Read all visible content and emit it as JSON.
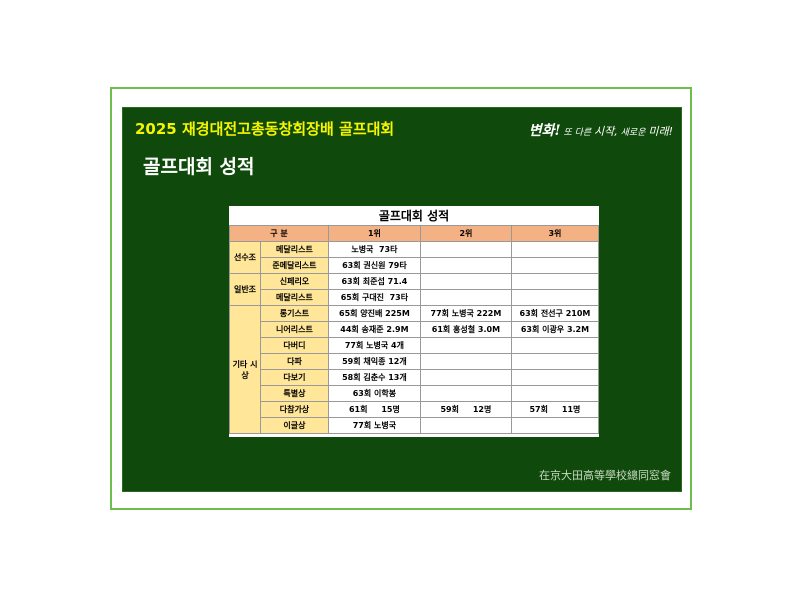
{
  "header": {
    "title": "2025 재경대전고총동창회장배 골프대회",
    "subtitle": "골프대회 성적",
    "logo": "변화! 또 다른 시작, 새로운 미래!",
    "footer": "在京大田高等學校總同窓會"
  },
  "table": {
    "title": "골프대회 성적",
    "columns": [
      "구  분",
      "1위",
      "2위",
      "3위"
    ],
    "groups": [
      {
        "name": "선수조",
        "rows": [
          {
            "label": "메달리스트",
            "cells": [
              "노병국  73타",
              "",
              ""
            ]
          },
          {
            "label": "준메달리스트",
            "cells": [
              "63회 권신원 79타",
              "",
              ""
            ]
          }
        ]
      },
      {
        "name": "일반조",
        "rows": [
          {
            "label": "신페리오",
            "cells": [
              "63회 최준섭 71.4",
              "",
              ""
            ]
          },
          {
            "label": "메달리스트",
            "cells": [
              "65회 구대진  73타",
              "",
              ""
            ]
          }
        ]
      },
      {
        "name": "기타 시상",
        "rows": [
          {
            "label": "롱기스트",
            "cells": [
              "65회 양진배 225M",
              "77회 노병국 222M",
              "63회 전선구 210M"
            ]
          },
          {
            "label": "니어리스트",
            "cells": [
              "44회 송재준 2.9M",
              "61회 홍성철 3.0M",
              "63회 이광우 3.2M"
            ]
          },
          {
            "label": "다버디",
            "cells": [
              "77회 노병국 4개",
              "",
              ""
            ]
          },
          {
            "label": "다파",
            "cells": [
              "59회 채익종 12개",
              "",
              ""
            ]
          },
          {
            "label": "다보기",
            "cells": [
              "58회 김춘수 13개",
              "",
              ""
            ]
          },
          {
            "label": "특별상",
            "cells": [
              "63회 이학봉",
              "",
              ""
            ]
          },
          {
            "label": "다참가상",
            "cells": [
              "61회     15명",
              "59회     12명",
              "57회     11명"
            ]
          },
          {
            "label": "이글상",
            "cells": [
              "77회 노병국",
              "",
              ""
            ]
          }
        ]
      }
    ]
  }
}
